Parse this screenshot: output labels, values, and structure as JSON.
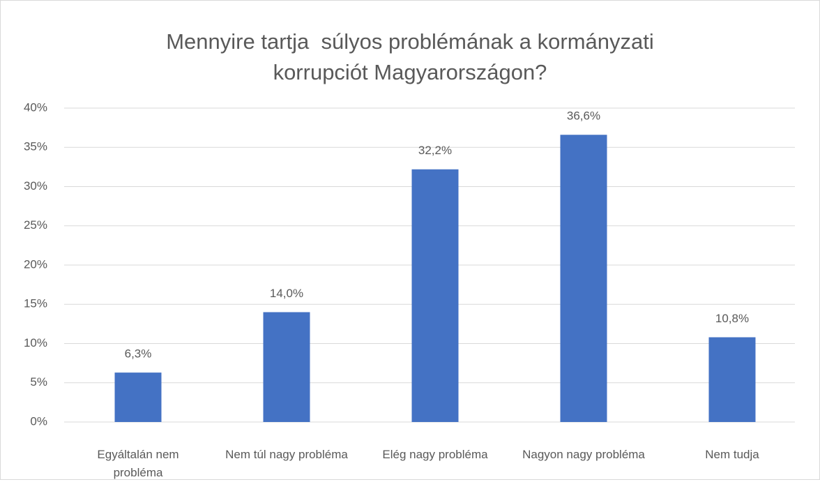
{
  "chart_data": {
    "type": "bar",
    "title": "Mennyire tartja  súlyos problémának a kormányzati korrupciót Magyarországon?",
    "categories": [
      "Egyáltalán nem probléma",
      "Nem túl nagy probléma",
      "Elég nagy probléma",
      "Nagyon nagy probléma",
      "Nem tudja"
    ],
    "values": [
      6.3,
      14.0,
      32.2,
      36.6,
      10.8
    ],
    "value_labels": [
      "6,3%",
      "14,0%",
      "32,2%",
      "36,6%",
      "10,8%"
    ],
    "color": "#4472c4",
    "ylim": [
      0,
      40
    ],
    "yticks": [
      {
        "value": 0,
        "label": "0%"
      },
      {
        "value": 5,
        "label": "5%"
      },
      {
        "value": 10,
        "label": "10%"
      },
      {
        "value": 15,
        "label": "15%"
      },
      {
        "value": 20,
        "label": "20%"
      },
      {
        "value": 25,
        "label": "25%"
      },
      {
        "value": 30,
        "label": "30%"
      },
      {
        "value": 35,
        "label": "35%"
      },
      {
        "value": 40,
        "label": "40%"
      }
    ],
    "grid": true
  }
}
